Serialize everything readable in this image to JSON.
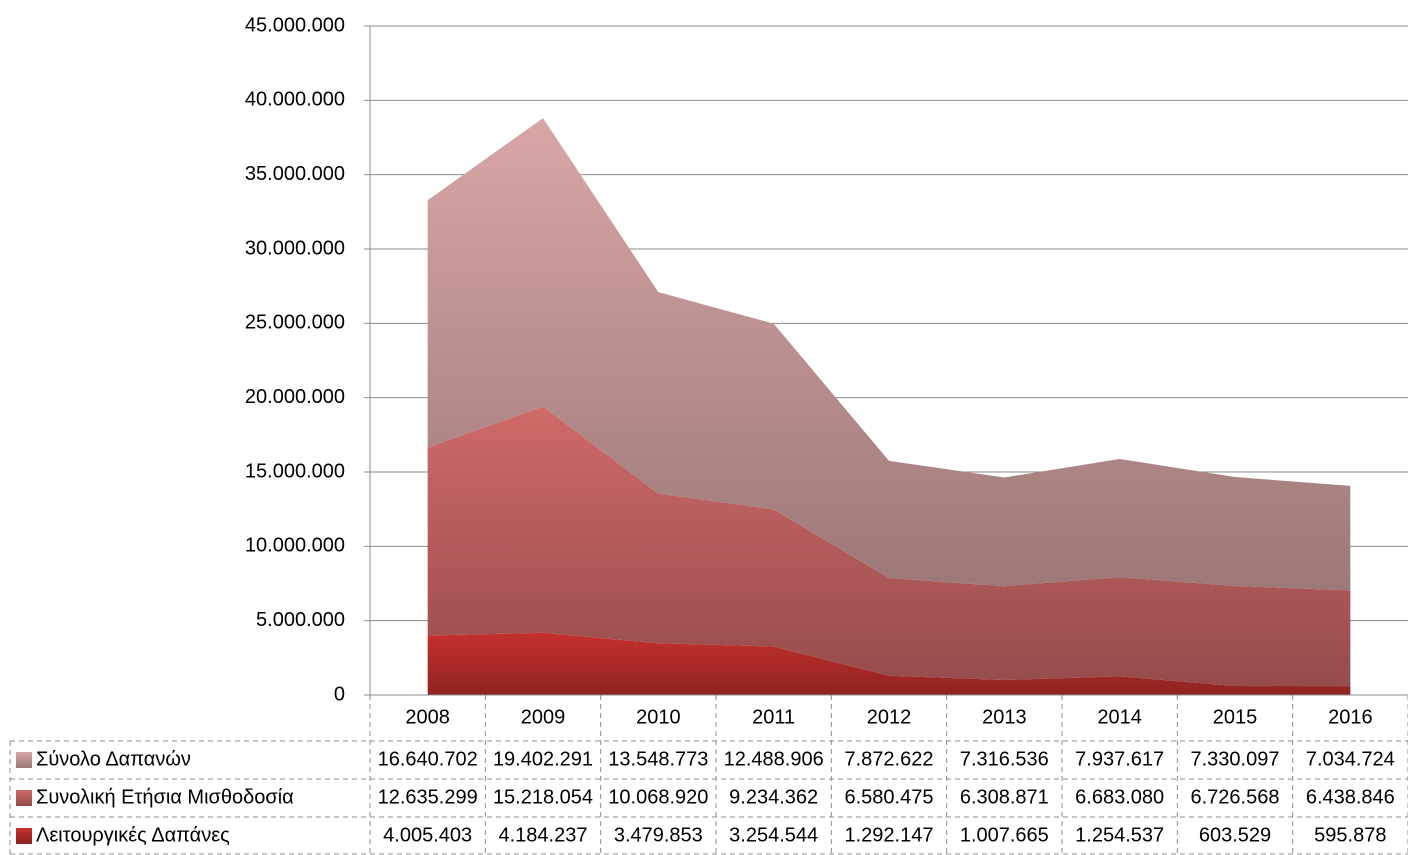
{
  "chart_data": {
    "type": "stacked_area",
    "categories": [
      "2008",
      "2009",
      "2010",
      "2011",
      "2012",
      "2013",
      "2014",
      "2015",
      "2016"
    ],
    "series": [
      {
        "name": "Σύνολο Δαπανών",
        "color": "#d9a6a6",
        "values": [
          16640702,
          19402291,
          13548773,
          12488906,
          7872622,
          7316536,
          7937617,
          7330097,
          7034724
        ],
        "value_labels": [
          "16.640.702",
          "19.402.291",
          "13.548.773",
          "12.488.906",
          "7.872.622",
          "7.316.536",
          "7.937.617",
          "7.330.097",
          "7.034.724"
        ]
      },
      {
        "name": "Συνολική Ετήσια Μισθοδοσία",
        "color": "#cf6a68",
        "values": [
          12635299,
          15218054,
          10068920,
          9234362,
          6580475,
          6308871,
          6683080,
          6726568,
          6438846
        ],
        "value_labels": [
          "12.635.299",
          "15.218.054",
          "10.068.920",
          "9.234.362",
          "6.580.475",
          "6.308.871",
          "6.683.080",
          "6.726.568",
          "6.438.846"
        ]
      },
      {
        "name": "Λειτουργικές Δαπάνες",
        "color": "#c5302e",
        "values": [
          4005403,
          4184237,
          3479853,
          3254544,
          1292147,
          1007665,
          1254537,
          603529,
          595878
        ],
        "value_labels": [
          "4.005.403",
          "4.184.237",
          "3.479.853",
          "3.254.544",
          "1.292.147",
          "1.007.665",
          "1.254.537",
          "603.529",
          "595.878"
        ]
      }
    ],
    "ylim": [
      0,
      45000000
    ],
    "yticks": [
      0,
      {
        "value": 5000000,
        "label": "5.000.000"
      },
      {
        "value": 10000000,
        "label": "10.000.000"
      },
      {
        "value": 15000000,
        "label": "15.000.000"
      },
      {
        "value": 20000000,
        "label": "20.000.000"
      },
      {
        "value": 25000000,
        "label": "25.000.000"
      },
      {
        "value": 30000000,
        "label": "30.000.000"
      },
      {
        "value": 35000000,
        "label": "35.000.000"
      },
      {
        "value": 40000000,
        "label": "40.000.000"
      },
      {
        "value": 45000000,
        "label": "45.000.000"
      }
    ],
    "grid": true,
    "legend": "table"
  }
}
